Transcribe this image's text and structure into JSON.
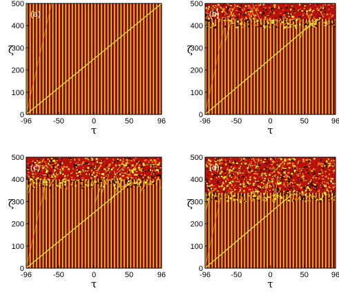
{
  "figure": {
    "panels": [
      {
        "label": "(a)",
        "xlabel": "τ",
        "ylabel": "ζ",
        "xticks": [
          "-96",
          "-50",
          "0",
          "50",
          "96"
        ],
        "yticks": [
          "0",
          "100",
          "200",
          "300",
          "400",
          "500"
        ]
      },
      {
        "label": "(b)",
        "xlabel": "τ",
        "ylabel": "ζ",
        "xticks": [
          "-96",
          "-50",
          "0",
          "50",
          "96"
        ],
        "yticks": [
          "0",
          "100",
          "200",
          "300",
          "400",
          "500"
        ]
      },
      {
        "label": "(c)",
        "xlabel": "τ",
        "ylabel": "ζ",
        "xticks": [
          "-96",
          "-50",
          "0",
          "50",
          "96"
        ],
        "yticks": [
          "0",
          "100",
          "200",
          "300",
          "400",
          "500"
        ]
      },
      {
        "label": "(d)",
        "xlabel": "τ",
        "ylabel": "ζ",
        "xticks": [
          "-96",
          "-50",
          "0",
          "50",
          "96"
        ],
        "yticks": [
          "0",
          "100",
          "200",
          "300",
          "400",
          "500"
        ]
      }
    ]
  },
  "chart_data": [
    {
      "type": "heatmap",
      "title": "(a)",
      "xlabel": "τ",
      "ylabel": "ζ",
      "xlim": [
        -96,
        96
      ],
      "ylim": [
        0,
        500
      ],
      "xticks": [
        -96,
        -50,
        0,
        50,
        96
      ],
      "yticks": [
        0,
        100,
        200,
        300,
        400,
        500
      ],
      "noise_onset": 500
    },
    {
      "type": "heatmap",
      "title": "(b)",
      "xlabel": "τ",
      "ylabel": "ζ",
      "xlim": [
        -96,
        96
      ],
      "ylim": [
        0,
        500
      ],
      "xticks": [
        -96,
        -50,
        0,
        50,
        96
      ],
      "yticks": [
        0,
        100,
        200,
        300,
        400,
        500
      ],
      "noise_onset": 430
    },
    {
      "type": "heatmap",
      "title": "(c)",
      "xlabel": "τ",
      "ylabel": "ζ",
      "xlim": [
        -96,
        96
      ],
      "ylim": [
        0,
        500
      ],
      "xticks": [
        -96,
        -50,
        0,
        50,
        96
      ],
      "yticks": [
        0,
        100,
        200,
        300,
        400,
        500
      ],
      "noise_onset": 400
    },
    {
      "type": "heatmap",
      "title": "(d)",
      "xlabel": "τ",
      "ylabel": "ζ",
      "xlim": [
        -96,
        96
      ],
      "ylim": [
        0,
        500
      ],
      "xticks": [
        -96,
        -50,
        0,
        50,
        96
      ],
      "yticks": [
        0,
        100,
        200,
        300,
        400,
        500
      ],
      "noise_onset": 340
    }
  ]
}
